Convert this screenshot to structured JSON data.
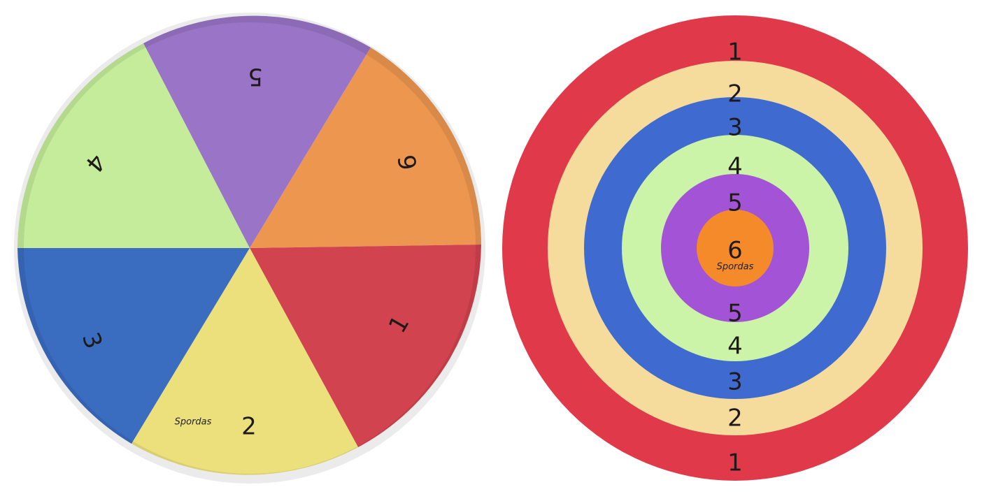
{
  "left_wheel": {
    "segments": [
      "5",
      "6",
      "1",
      "2",
      "3",
      "4"
    ],
    "brand": "Spordas"
  },
  "right_target": {
    "top_labels": [
      "1",
      "2",
      "3",
      "4",
      "5"
    ],
    "center_label": "6",
    "brand": "Spordas",
    "bottom_labels": [
      "5",
      "4",
      "3",
      "2",
      "1"
    ]
  }
}
